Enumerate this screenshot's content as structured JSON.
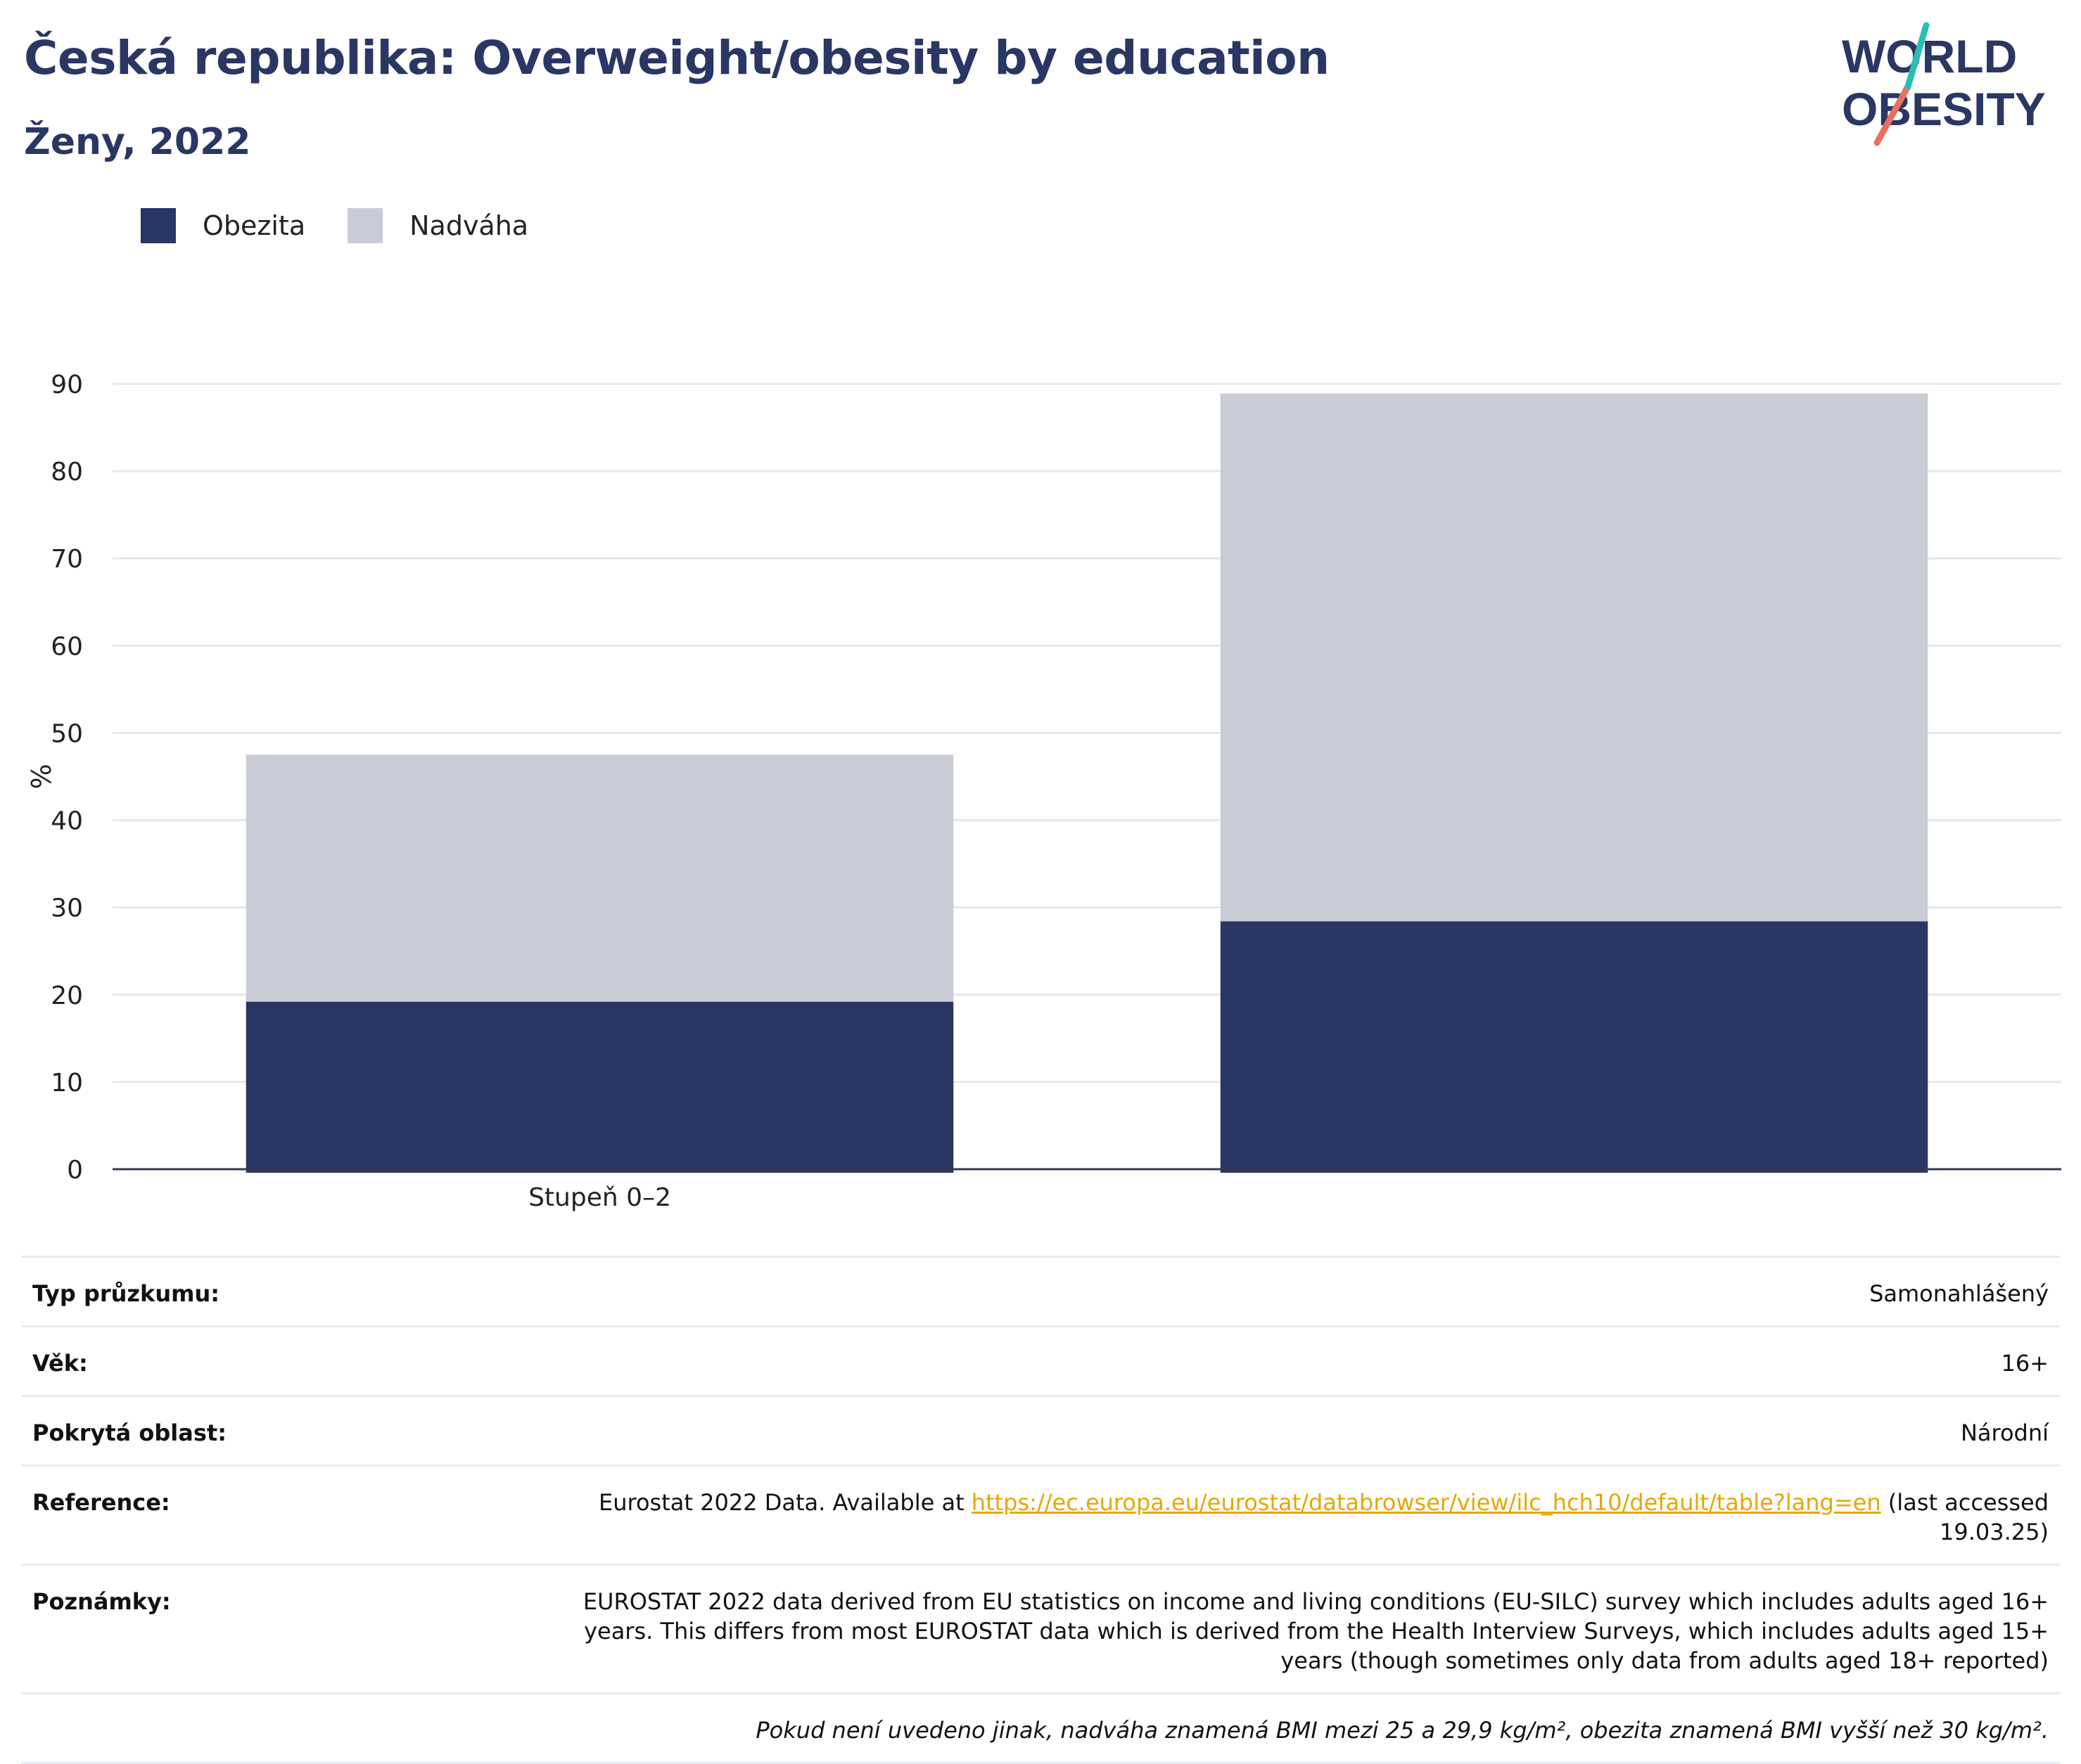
{
  "header": {
    "title": "Česká republika: Overweight/obesity by education",
    "subtitle": "Ženy, 2022",
    "logo_line1": "WORLD",
    "logo_line2": "OBESITY"
  },
  "legend": [
    {
      "label": "Obezita",
      "color": "#2a3663"
    },
    {
      "label": "Nadváha",
      "color": "#c9ccd7"
    }
  ],
  "chart_data": {
    "type": "bar",
    "stacked": true,
    "categories": [
      "Stupeň 0–2",
      ""
    ],
    "series": [
      {
        "name": "Obezita",
        "color": "#2a3663",
        "values": [
          19.2,
          28.4
        ]
      },
      {
        "name": "Nadváha",
        "color": "#c9ccd7",
        "values": [
          28.3,
          60.5
        ]
      }
    ],
    "ylabel": "%",
    "ylim": [
      0,
      90
    ],
    "yticks": [
      0,
      10,
      20,
      30,
      40,
      50,
      60,
      70,
      80,
      90
    ],
    "grid": true,
    "legend_position": "top-left"
  },
  "info": {
    "survey_label": "Typ průzkumu:",
    "survey_value": "Samonahlášený",
    "age_label": "Věk:",
    "age_value": "16+",
    "area_label": "Pokrytá oblast:",
    "area_value": "Národní",
    "reference_label": "Reference:",
    "reference_prefix": "Eurostat 2022 Data. Available at ",
    "reference_link": "https://ec.europa.eu/eurostat/databrowser/view/ilc_hch10/default/table?lang=en",
    "reference_suffix": " (last accessed 19.03.25)",
    "notes_label": "Poznámky:",
    "notes_value": "EUROSTAT 2022 data derived from EU statistics on income and living conditions (EU-SILC) survey which includes adults aged 16+ years. This differs from most EUROSTAT data which is derived from the Health Interview Surveys, which includes adults aged 15+ years (though sometimes only data from adults aged 18+ reported)",
    "footnote": "Pokud není uvedeno jinak, nadváha znamená BMI mezi 25 a 29,9 kg/m², obezita znamená BMI vyšší než 30 kg/m²."
  }
}
